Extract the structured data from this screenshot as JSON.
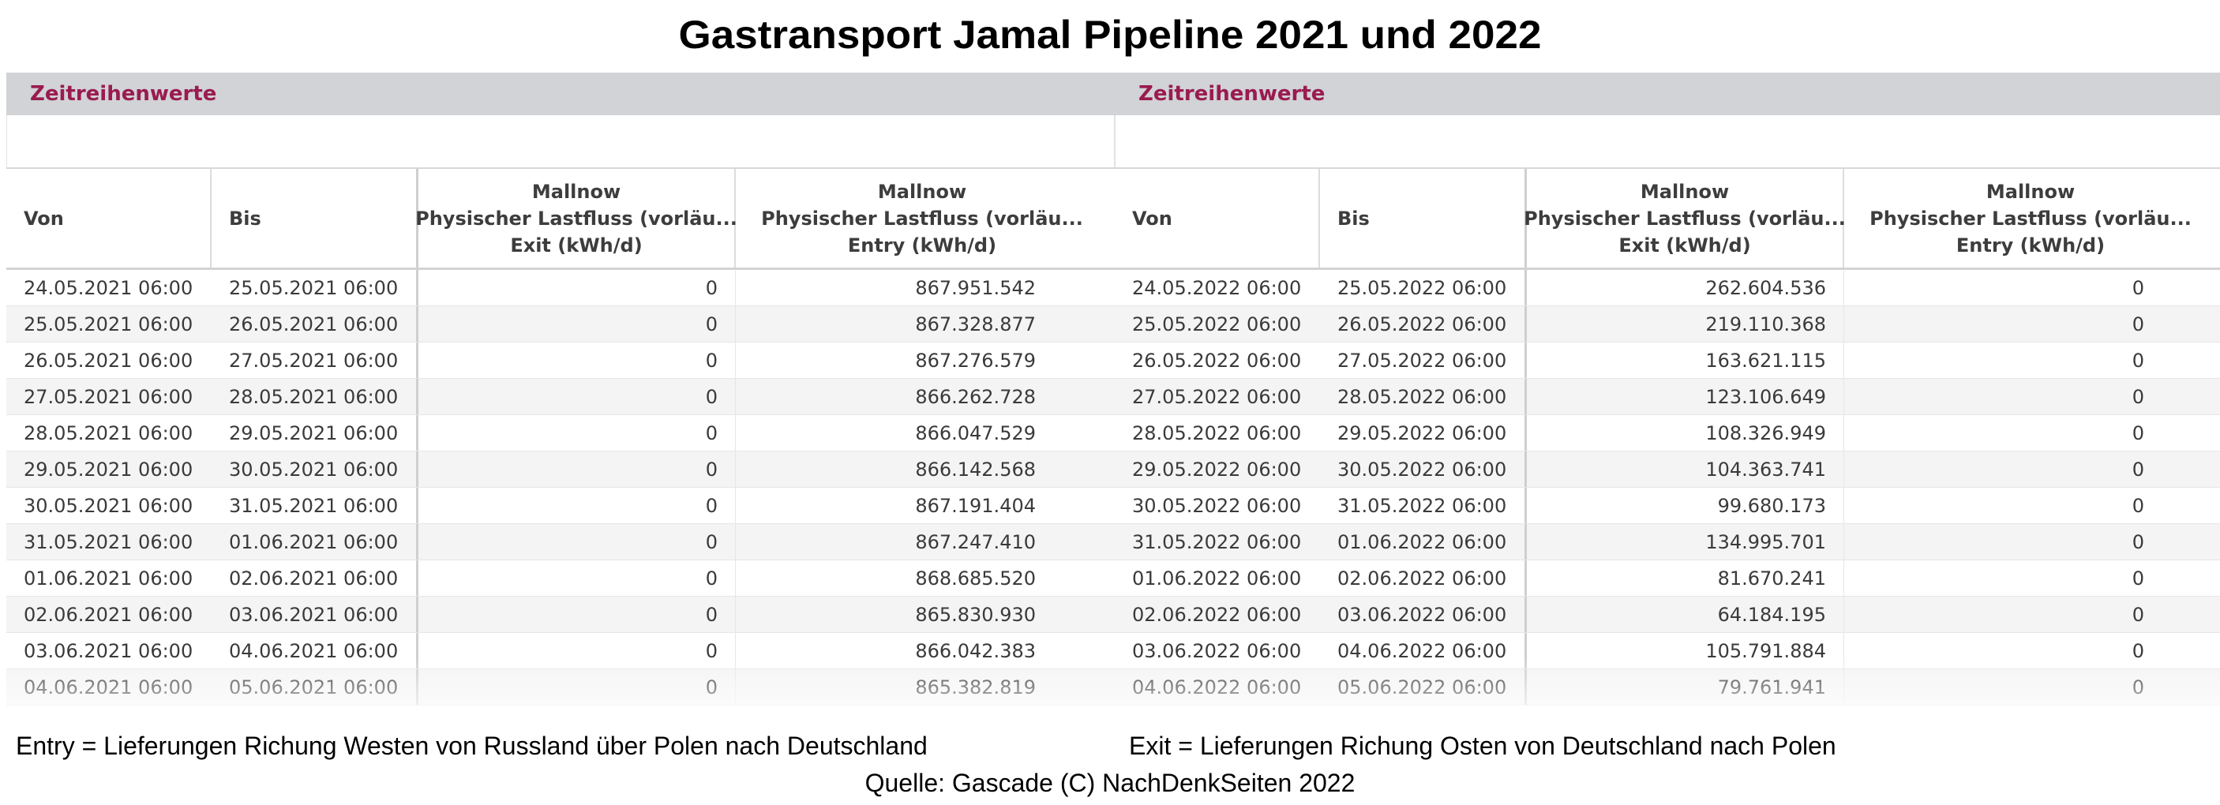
{
  "title": "Gastransport Jamal Pipeline 2021 und 2022",
  "panels": [
    {
      "header": "Zeitreihenwerte",
      "columns": {
        "von": "Von",
        "bis": "Bis",
        "exit": [
          "Mallnow",
          "Physischer Lastfluss (vorläu...",
          "Exit (kWh/d)"
        ],
        "entry": [
          "Mallnow",
          "Physischer Lastfluss (vorläu...",
          "Entry (kWh/d)"
        ]
      },
      "rows": [
        {
          "von": "24.05.2021 06:00",
          "bis": "25.05.2021 06:00",
          "exit": "0",
          "entry": "867.951.542"
        },
        {
          "von": "25.05.2021 06:00",
          "bis": "26.05.2021 06:00",
          "exit": "0",
          "entry": "867.328.877"
        },
        {
          "von": "26.05.2021 06:00",
          "bis": "27.05.2021 06:00",
          "exit": "0",
          "entry": "867.276.579"
        },
        {
          "von": "27.05.2021 06:00",
          "bis": "28.05.2021 06:00",
          "exit": "0",
          "entry": "866.262.728"
        },
        {
          "von": "28.05.2021 06:00",
          "bis": "29.05.2021 06:00",
          "exit": "0",
          "entry": "866.047.529"
        },
        {
          "von": "29.05.2021 06:00",
          "bis": "30.05.2021 06:00",
          "exit": "0",
          "entry": "866.142.568"
        },
        {
          "von": "30.05.2021 06:00",
          "bis": "31.05.2021 06:00",
          "exit": "0",
          "entry": "867.191.404"
        },
        {
          "von": "31.05.2021 06:00",
          "bis": "01.06.2021 06:00",
          "exit": "0",
          "entry": "867.247.410"
        },
        {
          "von": "01.06.2021 06:00",
          "bis": "02.06.2021 06:00",
          "exit": "0",
          "entry": "868.685.520"
        },
        {
          "von": "02.06.2021 06:00",
          "bis": "03.06.2021 06:00",
          "exit": "0",
          "entry": "865.830.930"
        },
        {
          "von": "03.06.2021 06:00",
          "bis": "04.06.2021 06:00",
          "exit": "0",
          "entry": "866.042.383"
        },
        {
          "von": "04.06.2021 06:00",
          "bis": "05.06.2021 06:00",
          "exit": "0",
          "entry": "865.382.819"
        }
      ],
      "note": "Entry = Lieferungen Richung Westen von Russland über Polen nach Deutschland"
    },
    {
      "header": "Zeitreihenwerte",
      "columns": {
        "von": "Von",
        "bis": "Bis",
        "exit": [
          "Mallnow",
          "Physischer Lastfluss (vorläu...",
          "Exit (kWh/d)"
        ],
        "entry": [
          "Mallnow",
          "Physischer Lastfluss (vorläu...",
          "Entry (kWh/d)"
        ]
      },
      "rows": [
        {
          "von": "24.05.2022 06:00",
          "bis": "25.05.2022 06:00",
          "exit": "262.604.536",
          "entry": "0"
        },
        {
          "von": "25.05.2022 06:00",
          "bis": "26.05.2022 06:00",
          "exit": "219.110.368",
          "entry": "0"
        },
        {
          "von": "26.05.2022 06:00",
          "bis": "27.05.2022 06:00",
          "exit": "163.621.115",
          "entry": "0"
        },
        {
          "von": "27.05.2022 06:00",
          "bis": "28.05.2022 06:00",
          "exit": "123.106.649",
          "entry": "0"
        },
        {
          "von": "28.05.2022 06:00",
          "bis": "29.05.2022 06:00",
          "exit": "108.326.949",
          "entry": "0"
        },
        {
          "von": "29.05.2022 06:00",
          "bis": "30.05.2022 06:00",
          "exit": "104.363.741",
          "entry": "0"
        },
        {
          "von": "30.05.2022 06:00",
          "bis": "31.05.2022 06:00",
          "exit": "99.680.173",
          "entry": "0"
        },
        {
          "von": "31.05.2022 06:00",
          "bis": "01.06.2022 06:00",
          "exit": "134.995.701",
          "entry": "0"
        },
        {
          "von": "01.06.2022 06:00",
          "bis": "02.06.2022 06:00",
          "exit": "81.670.241",
          "entry": "0"
        },
        {
          "von": "02.06.2022 06:00",
          "bis": "03.06.2022 06:00",
          "exit": "64.184.195",
          "entry": "0"
        },
        {
          "von": "03.06.2022 06:00",
          "bis": "04.06.2022 06:00",
          "exit": "105.791.884",
          "entry": "0"
        },
        {
          "von": "04.06.2022 06:00",
          "bis": "05.06.2022 06:00",
          "exit": "79.761.941",
          "entry": "0"
        }
      ],
      "note": "Exit = Lieferungen Richung Osten von Deutschland nach Polen"
    }
  ],
  "source": "Quelle: Gascade (C) NachDenkSeiten 2022",
  "colors": {
    "header_bg": "#d1d3d6",
    "header_text": "#9a1b4f",
    "row_alt": "#f4f4f5"
  }
}
